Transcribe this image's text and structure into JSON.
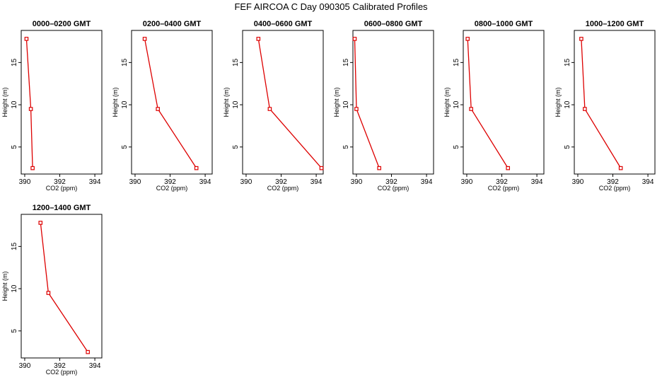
{
  "page": {
    "title": "FEF AIRCOA C  Day 090305  Calibrated Profiles"
  },
  "style": {
    "line_color": "#dd0000",
    "marker_color": "#dd0000",
    "axis_color": "#000000"
  },
  "chart_data": [
    {
      "type": "line",
      "title": "0000–0200 GMT",
      "xlabel": "CO2 (ppm)",
      "ylabel": "Height (m)",
      "xlim": [
        389.8,
        394.4
      ],
      "ylim": [
        1.8,
        18.8
      ],
      "xticks": [
        "390",
        "392",
        "394"
      ],
      "yticks": [
        "5",
        "10",
        "15"
      ],
      "series": [
        {
          "x": [
            390.45,
            390.35,
            390.1
          ],
          "y": [
            2.5,
            9.5,
            17.8
          ]
        }
      ]
    },
    {
      "type": "line",
      "title": "0200–0400 GMT",
      "xlabel": "CO2 (ppm)",
      "ylabel": "Height (m)",
      "xlim": [
        389.8,
        394.4
      ],
      "ylim": [
        1.8,
        18.8
      ],
      "xticks": [
        "390",
        "392",
        "394"
      ],
      "yticks": [
        "5",
        "10",
        "15"
      ],
      "series": [
        {
          "x": [
            393.5,
            391.3,
            390.55
          ],
          "y": [
            2.5,
            9.5,
            17.8
          ]
        }
      ]
    },
    {
      "type": "line",
      "title": "0400–0600 GMT",
      "xlabel": "CO2 (ppm)",
      "ylabel": "Height (m)",
      "xlim": [
        389.8,
        394.4
      ],
      "ylim": [
        1.8,
        18.8
      ],
      "xticks": [
        "390",
        "392",
        "394"
      ],
      "yticks": [
        "5",
        "10",
        "15"
      ],
      "series": [
        {
          "x": [
            394.3,
            391.35,
            390.7
          ],
          "y": [
            2.5,
            9.5,
            17.8
          ]
        }
      ]
    },
    {
      "type": "line",
      "title": "0600–0800 GMT",
      "xlabel": "CO2 (ppm)",
      "ylabel": "Height (m)",
      "xlim": [
        389.8,
        394.4
      ],
      "ylim": [
        1.8,
        18.8
      ],
      "xticks": [
        "390",
        "392",
        "394"
      ],
      "yticks": [
        "5",
        "10",
        "15"
      ],
      "series": [
        {
          "x": [
            391.3,
            390.0,
            389.9
          ],
          "y": [
            2.5,
            9.5,
            17.8
          ]
        }
      ]
    },
    {
      "type": "line",
      "title": "0800–1000 GMT",
      "xlabel": "CO2 (ppm)",
      "ylabel": "Height (m)",
      "xlim": [
        389.8,
        394.4
      ],
      "ylim": [
        1.8,
        18.8
      ],
      "xticks": [
        "390",
        "392",
        "394"
      ],
      "yticks": [
        "5",
        "10",
        "15"
      ],
      "series": [
        {
          "x": [
            392.35,
            390.25,
            390.05
          ],
          "y": [
            2.5,
            9.5,
            17.8
          ]
        }
      ]
    },
    {
      "type": "line",
      "title": "1000–1200 GMT",
      "xlabel": "CO2 (ppm)",
      "ylabel": "Height (m)",
      "xlim": [
        389.8,
        394.4
      ],
      "ylim": [
        1.8,
        18.8
      ],
      "xticks": [
        "390",
        "392",
        "394"
      ],
      "yticks": [
        "5",
        "10",
        "15"
      ],
      "series": [
        {
          "x": [
            392.45,
            390.4,
            390.2
          ],
          "y": [
            2.5,
            9.5,
            17.8
          ]
        }
      ]
    },
    {
      "type": "line",
      "title": "1200–1400 GMT",
      "xlabel": "CO2 (ppm)",
      "ylabel": "Height (m)",
      "xlim": [
        389.8,
        394.4
      ],
      "ylim": [
        1.8,
        18.8
      ],
      "xticks": [
        "390",
        "392",
        "394"
      ],
      "yticks": [
        "5",
        "10",
        "15"
      ],
      "series": [
        {
          "x": [
            393.6,
            391.35,
            390.9
          ],
          "y": [
            2.5,
            9.5,
            17.8
          ]
        }
      ]
    }
  ]
}
